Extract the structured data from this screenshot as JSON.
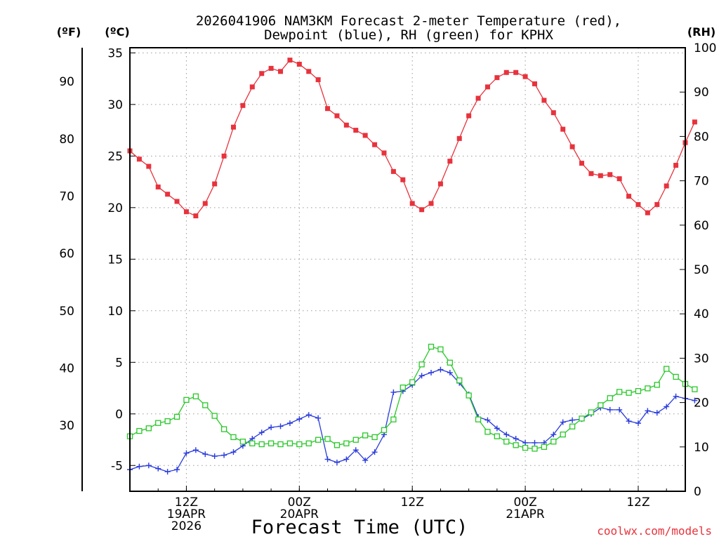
{
  "chart_data": {
    "type": "line",
    "title_line1": "2026041906 NAM3KM Forecast 2-meter Temperature (red),",
    "title_line2": "Dewpoint (blue), RH (green) for KPHX",
    "unit_f": "(ºF)",
    "unit_c": "(ºC)",
    "unit_rh": "(RH)",
    "xlabel": "Forecast Time (UTC)",
    "credit": "coolwx.com/models",
    "x_unit": "hours since 2026-04-19 06Z",
    "xlim": [
      0,
      59
    ],
    "ylim_c": [
      -7.5,
      35.5
    ],
    "ylim_f": [
      18.5,
      95.9
    ],
    "ylim_rh": [
      0,
      100
    ],
    "c_ticks": [
      35,
      30,
      25,
      20,
      15,
      10,
      5,
      0,
      -5
    ],
    "f_ticks": [
      90,
      80,
      70,
      60,
      50,
      40,
      30
    ],
    "rh_ticks": [
      100,
      90,
      80,
      70,
      60,
      50,
      40,
      30,
      20,
      10,
      0
    ],
    "x_ticks": [
      {
        "x": 6,
        "lines": [
          "12Z",
          "19APR",
          "2026"
        ]
      },
      {
        "x": 18,
        "lines": [
          "00Z",
          "20APR"
        ]
      },
      {
        "x": 30,
        "lines": [
          "12Z"
        ]
      },
      {
        "x": 42,
        "lines": [
          "00Z",
          "21APR"
        ]
      },
      {
        "x": 54,
        "lines": [
          "12Z"
        ]
      }
    ],
    "grid": true,
    "series": [
      {
        "name": "2-meter Temperature",
        "unit": "C",
        "color": "#e8323c",
        "marker": "filled-square",
        "values": [
          25.5,
          24.7,
          24.0,
          22.0,
          21.3,
          20.6,
          19.6,
          19.2,
          20.4,
          22.3,
          25.0,
          27.8,
          29.9,
          31.7,
          33.0,
          33.5,
          33.2,
          34.3,
          33.9,
          33.2,
          32.4,
          29.6,
          28.9,
          28.0,
          27.5,
          27.0,
          26.1,
          25.3,
          23.5,
          22.7,
          20.4,
          19.8,
          20.4,
          22.3,
          24.5,
          26.7,
          28.9,
          30.6,
          31.7,
          32.6,
          33.1,
          33.1,
          32.7,
          32.0,
          30.4,
          29.2,
          27.6,
          25.9,
          24.3,
          23.3,
          23.1,
          23.2,
          22.8,
          21.1,
          20.3,
          19.5,
          20.3,
          22.1,
          24.1,
          26.3,
          28.3
        ]
      },
      {
        "name": "Dewpoint",
        "unit": "C",
        "color": "#2a3cdc",
        "marker": "plus",
        "values": [
          -5.4,
          -5.1,
          -5.0,
          -5.3,
          -5.6,
          -5.4,
          -3.8,
          -3.5,
          -3.9,
          -4.1,
          -4.0,
          -3.7,
          -3.1,
          -2.4,
          -1.8,
          -1.3,
          -1.2,
          -0.9,
          -0.5,
          -0.1,
          -0.4,
          -4.4,
          -4.7,
          -4.4,
          -3.5,
          -4.5,
          -3.7,
          -2.0,
          2.1,
          2.2,
          2.8,
          3.7,
          4.0,
          4.3,
          4.0,
          3.0,
          1.9,
          -0.3,
          -0.6,
          -1.4,
          -2.0,
          -2.4,
          -2.8,
          -2.8,
          -2.8,
          -2.0,
          -0.8,
          -0.6,
          -0.5,
          0.0,
          0.6,
          0.4,
          0.4,
          -0.7,
          -0.9,
          0.3,
          0.1,
          0.7,
          1.7,
          1.5,
          1.3
        ]
      },
      {
        "name": "Relative Humidity",
        "unit": "%",
        "color": "#28c828",
        "marker": "open-square",
        "values": [
          12.4,
          13.6,
          14.2,
          15.4,
          15.8,
          16.8,
          20.6,
          21.4,
          19.4,
          17.0,
          14.0,
          12.2,
          11.2,
          10.8,
          10.6,
          10.8,
          10.6,
          10.8,
          10.6,
          10.8,
          11.6,
          11.8,
          10.4,
          10.8,
          11.6,
          12.6,
          12.2,
          13.8,
          16.2,
          23.4,
          24.6,
          28.6,
          32.6,
          32.0,
          29.0,
          25.0,
          21.6,
          16.2,
          13.4,
          12.4,
          11.2,
          10.4,
          9.8,
          9.6,
          10.0,
          11.2,
          12.8,
          14.6,
          16.4,
          17.8,
          19.4,
          21.0,
          22.4,
          22.2,
          22.6,
          23.2,
          24.0,
          27.6,
          25.8,
          24.2,
          23.0
        ]
      }
    ]
  }
}
